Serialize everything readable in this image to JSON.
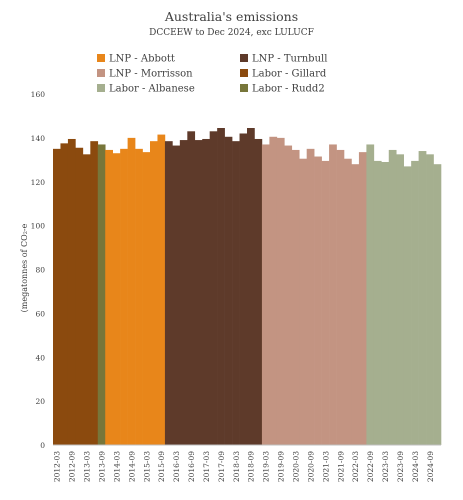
{
  "chart_data": {
    "type": "bar",
    "title": "Australia's emissions",
    "subtitle": "DCCEEW to Dec 2024, exc LULUCF",
    "ylabel": "(megatonnes of CO₂-e",
    "ylim": [
      0,
      160
    ],
    "yticks": [
      0,
      20,
      40,
      60,
      80,
      100,
      120,
      140,
      160
    ],
    "grid": false,
    "legend_position": "top",
    "series": [
      {
        "name": "LNP - Abbott",
        "color": "#E8861A"
      },
      {
        "name": "LNP - Turnbull",
        "color": "#5E3A2A"
      },
      {
        "name": "LNP - Morrisson",
        "color": "#C39482"
      },
      {
        "name": "Labor - Gillard",
        "color": "#8B4A0E"
      },
      {
        "name": "Labor - Albanese",
        "color": "#A5AF8F"
      },
      {
        "name": "Labor - Rudd2",
        "color": "#77763A"
      }
    ],
    "categories": [
      "2012-03",
      "2012-06",
      "2012-09",
      "2012-12",
      "2013-03",
      "2013-06",
      "2013-09",
      "2013-12",
      "2014-03",
      "2014-06",
      "2014-09",
      "2014-12",
      "2015-03",
      "2015-06",
      "2015-09",
      "2015-12",
      "2016-03",
      "2016-06",
      "2016-09",
      "2016-12",
      "2017-03",
      "2017-06",
      "2017-09",
      "2017-12",
      "2018-03",
      "2018-06",
      "2018-09",
      "2018-12",
      "2019-03",
      "2019-06",
      "2019-09",
      "2019-12",
      "2020-03",
      "2020-06",
      "2020-09",
      "2020-12",
      "2021-03",
      "2021-06",
      "2021-09",
      "2021-12",
      "2022-03",
      "2022-06",
      "2022-09",
      "2022-12",
      "2023-03",
      "2023-06",
      "2023-09",
      "2023-12",
      "2024-03",
      "2024-06",
      "2024-09",
      "2024-12"
    ],
    "tick_labels": [
      "2012-03",
      "2012-09",
      "2013-03",
      "2013-09",
      "2014-03",
      "2014-09",
      "2015-03",
      "2015-09",
      "2016-03",
      "2016-09",
      "2017-03",
      "2017-09",
      "2018-03",
      "2018-09",
      "2019-03",
      "2019-09",
      "2020-03",
      "2020-09",
      "2021-03",
      "2021-09",
      "2022-03",
      "2022-09",
      "2023-03",
      "2023-09",
      "2024-03",
      "2024-09"
    ],
    "values": [
      135,
      137.5,
      139.5,
      135.5,
      132.5,
      138.5,
      137,
      134.5,
      133,
      135,
      140,
      135,
      133.5,
      138.5,
      141.5,
      138.5,
      136.5,
      139,
      143,
      139,
      139.5,
      143,
      144.5,
      140.5,
      138.5,
      142,
      144.5,
      139.5,
      137,
      140.5,
      140,
      136.5,
      134.5,
      130.5,
      135,
      131.5,
      129.5,
      137,
      134.5,
      130.5,
      128,
      133.5,
      137,
      129.5,
      129,
      134.5,
      132.5,
      127,
      129.5,
      134,
      132.5,
      128
    ],
    "government": [
      "Labor - Gillard",
      "Labor - Gillard",
      "Labor - Gillard",
      "Labor - Gillard",
      "Labor - Gillard",
      "Labor - Gillard",
      "Labor - Rudd2",
      "LNP - Abbott",
      "LNP - Abbott",
      "LNP - Abbott",
      "LNP - Abbott",
      "LNP - Abbott",
      "LNP - Abbott",
      "LNP - Abbott",
      "LNP - Abbott",
      "LNP - Turnbull",
      "LNP - Turnbull",
      "LNP - Turnbull",
      "LNP - Turnbull",
      "LNP - Turnbull",
      "LNP - Turnbull",
      "LNP - Turnbull",
      "LNP - Turnbull",
      "LNP - Turnbull",
      "LNP - Turnbull",
      "LNP - Turnbull",
      "LNP - Turnbull",
      "LNP - Turnbull",
      "LNP - Morrisson",
      "LNP - Morrisson",
      "LNP - Morrisson",
      "LNP - Morrisson",
      "LNP - Morrisson",
      "LNP - Morrisson",
      "LNP - Morrisson",
      "LNP - Morrisson",
      "LNP - Morrisson",
      "LNP - Morrisson",
      "LNP - Morrisson",
      "LNP - Morrisson",
      "LNP - Morrisson",
      "LNP - Morrisson",
      "Labor - Albanese",
      "Labor - Albanese",
      "Labor - Albanese",
      "Labor - Albanese",
      "Labor - Albanese",
      "Labor - Albanese",
      "Labor - Albanese",
      "Labor - Albanese",
      "Labor - Albanese",
      "Labor - Albanese"
    ]
  }
}
